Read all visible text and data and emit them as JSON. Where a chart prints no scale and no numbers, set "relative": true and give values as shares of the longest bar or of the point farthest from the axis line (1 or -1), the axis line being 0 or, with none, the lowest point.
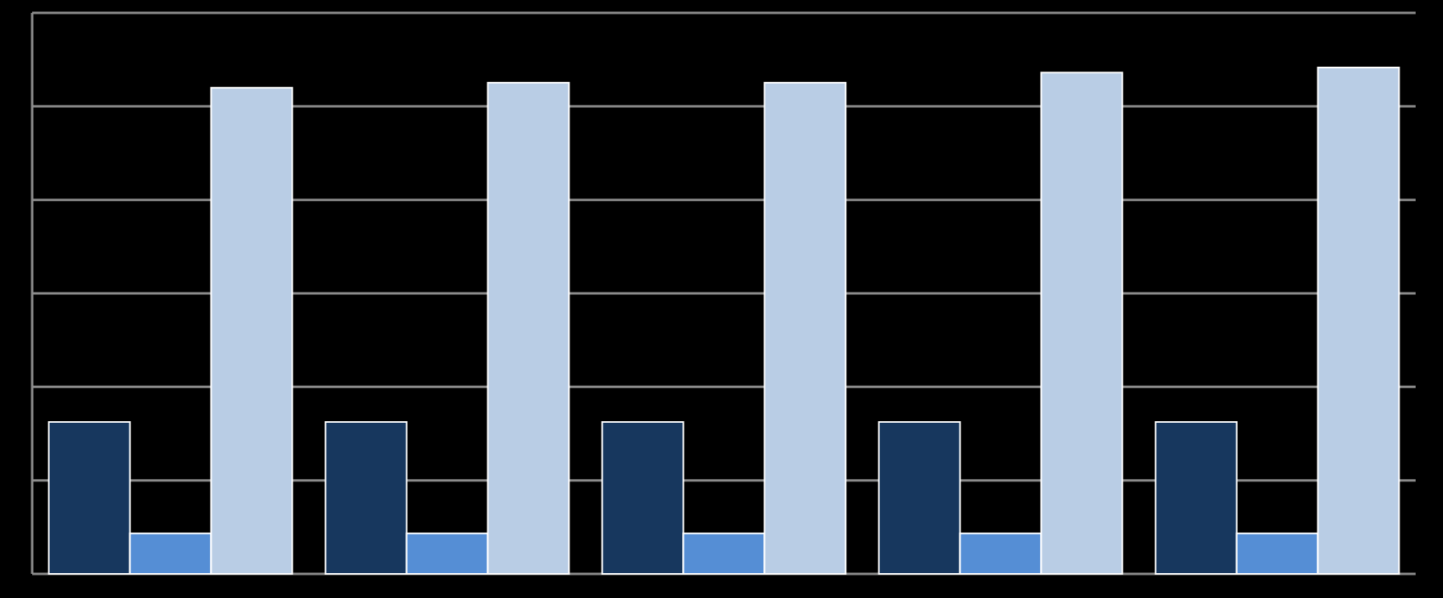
{
  "chart_data": {
    "type": "bar",
    "relative": true,
    "grid": true,
    "categories": [
      null,
      null,
      null,
      null,
      null
    ],
    "series": [
      {
        "color": "#17375e",
        "values": [
          0.3,
          0.3,
          0.3,
          0.3,
          0.3
        ]
      },
      {
        "color": "#558ed5",
        "values": [
          0.08,
          0.08,
          0.08,
          0.08,
          0.08
        ]
      },
      {
        "color": "#b9cde5",
        "values": [
          0.96,
          0.97,
          0.97,
          0.99,
          1
        ]
      }
    ]
  }
}
